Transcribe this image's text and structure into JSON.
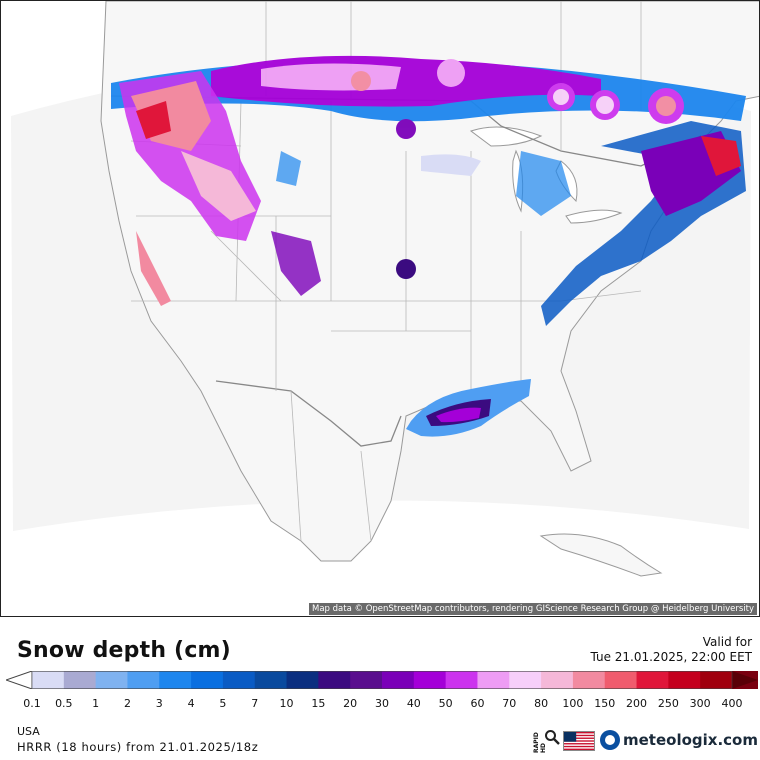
{
  "map": {
    "attribution": "Map data © OpenStreetMap contributors, rendering GIScience Research Group @ Heidelberg University"
  },
  "legend": {
    "title": "Snow depth (cm)",
    "valid_label": "Valid for",
    "valid_time": "Tue 21.01.2025, 22:00 EET",
    "ticks": [
      "0.1",
      "0.5",
      "1",
      "2",
      "3",
      "4",
      "5",
      "7",
      "10",
      "15",
      "20",
      "30",
      "40",
      "50",
      "60",
      "70",
      "80",
      "100",
      "150",
      "200",
      "250",
      "300",
      "400"
    ],
    "colors": [
      "#d9dcf5",
      "#a9aad2",
      "#7fb2f0",
      "#4f9ef2",
      "#1d86ee",
      "#0a6fe0",
      "#0a5bc4",
      "#0a4a9e",
      "#0b2f80",
      "#3b0b80",
      "#5a0e8e",
      "#7a00b8",
      "#a400d8",
      "#cc33ee",
      "#ee9cf4",
      "#f6cff9",
      "#f5b8d8",
      "#f28aa0",
      "#f05c6e",
      "#e0163a",
      "#c4001e",
      "#a0000e",
      "#7a0010",
      "#5a0008"
    ],
    "colors_note": "Colors of color bar from lightest to darkest"
  },
  "footer": {
    "region": "USA",
    "model_run": "HRRR (18 hours) from 21.01.2025/18z",
    "rapid_hd_label": "RAPID HD",
    "brand": "meteologix.com"
  },
  "icons": {
    "zoom": "magnifier-icon",
    "flag": "usa-flag-icon",
    "brand_logo": "meteologix-logo-icon"
  }
}
